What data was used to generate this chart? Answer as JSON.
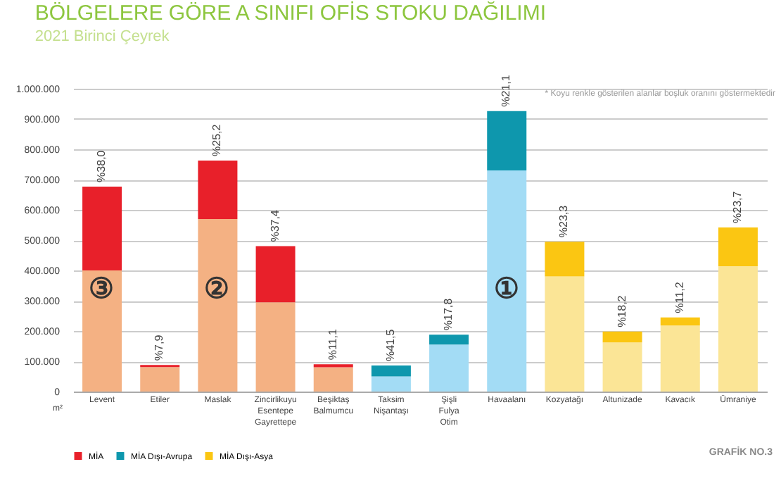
{
  "chart_data": {
    "type": "bar",
    "stacked": true,
    "title": "BÖLGELERE GÖRE A SINIFI OFİS STOKU DAĞILIMI",
    "subtitle": "2021 Birinci Çeyrek",
    "ylabel": "m²",
    "categories": [
      "Levent",
      "Etiler",
      "Maslak",
      "Zincirlikuyu Esentepe Gayrettepe",
      "Beşiktaş Balmumcu",
      "Taksim Nişantaşı",
      "Şişli Fulya Otim",
      "Havaalanı",
      "Kozyatağı",
      "Altunizade",
      "Kavacık",
      "Ümraniye"
    ],
    "series": [
      {
        "color": "#f4b183",
        "values": [
          400000,
          81000,
          570000,
          295000,
          80000,
          null,
          null,
          null,
          null,
          null,
          null,
          null
        ]
      },
      {
        "name": "MİA",
        "color": "#e8202a",
        "values": [
          277000,
          7000,
          193000,
          185000,
          10000,
          null,
          null,
          null,
          null,
          null,
          null,
          null
        ]
      },
      {
        "color": "#a3dcf5",
        "values": [
          null,
          null,
          null,
          null,
          null,
          50000,
          155000,
          730000,
          null,
          null,
          null,
          null
        ]
      },
      {
        "name": "MİA Dışı-Avrupa",
        "color": "#0e97ad",
        "values": [
          null,
          null,
          null,
          null,
          null,
          36000,
          33000,
          196000,
          null,
          null,
          null,
          null
        ]
      },
      {
        "color": "#fbe596",
        "values": [
          null,
          null,
          null,
          null,
          null,
          null,
          null,
          null,
          380000,
          162000,
          218000,
          414000
        ]
      },
      {
        "name": "MİA Dışı-Asya",
        "color": "#fbc612",
        "values": [
          null,
          null,
          null,
          null,
          null,
          null,
          null,
          null,
          115000,
          36000,
          27000,
          128000
        ]
      }
    ],
    "ylim": [
      0,
      1000000
    ],
    "yticks": [
      {
        "value": 0,
        "label": "0"
      },
      {
        "value": 100000,
        "label": "100.000"
      },
      {
        "value": 200000,
        "label": "200.000"
      },
      {
        "value": 300000,
        "label": "300.000"
      },
      {
        "value": 400000,
        "label": "400.000"
      },
      {
        "value": 500000,
        "label": "500.000"
      },
      {
        "value": 600000,
        "label": "600.000"
      },
      {
        "value": 700000,
        "label": "700.000"
      },
      {
        "value": 800000,
        "label": "800.000"
      },
      {
        "value": 900000,
        "label": "900.000"
      },
      {
        "value": 1000000,
        "label": "1.000.000"
      }
    ],
    "grid": "y",
    "legend": "bottom",
    "annotations": [
      {
        "text": "%38,0",
        "x": "Levent",
        "y": 677000
      },
      {
        "text": "%7,9",
        "x": "Etiler",
        "y": 88000
      },
      {
        "text": "%25,2",
        "x": "Maslak",
        "y": 763000
      },
      {
        "text": "%37,4",
        "x": "Zincirlikuyu Esentepe Gayrettepe",
        "y": 480000
      },
      {
        "text": "%11,1",
        "x": "Beşiktaş Balmumcu",
        "y": 90000
      },
      {
        "text": "%41,5",
        "x": "Taksim Nişantaşı",
        "y": 86000
      },
      {
        "text": "%17,8",
        "x": "Şişli Fulya Otim",
        "y": 188000
      },
      {
        "text": "%21,1",
        "x": "Havaalanı",
        "y": 926000
      },
      {
        "text": "%23,3",
        "x": "Kozyatağı",
        "y": 495000
      },
      {
        "text": "%18,2",
        "x": "Altunizade",
        "y": 198000
      },
      {
        "text": "%11,2",
        "x": "Kavacık",
        "y": 245000
      },
      {
        "text": "%23,7",
        "x": "Ümraniye",
        "y": 542000
      },
      "③",
      "②",
      "①",
      "* Koyu renkle gösterilen alanlar boşluk oranını göstermektedir",
      "GRAFİK NO.3"
    ]
  }
}
